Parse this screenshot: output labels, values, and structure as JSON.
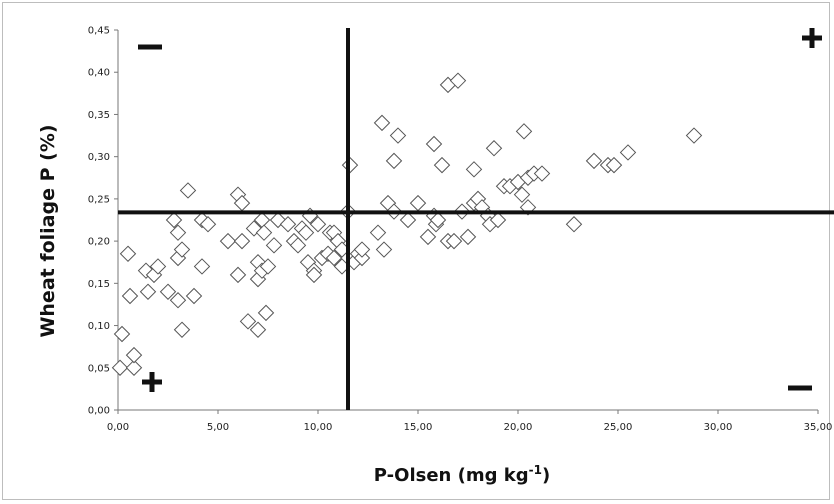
{
  "chart_data": {
    "type": "scatter",
    "title": "",
    "xlabel_main": "P-Olsen (mg kg",
    "xlabel_sup": "-1",
    "xlabel_end": ")",
    "ylabel": "Wheat foliage P (%)",
    "xlim": [
      0,
      35
    ],
    "ylim": [
      0,
      0.45
    ],
    "x_ticks": [
      "0,00",
      "5,00",
      "10,00",
      "15,00",
      "20,00",
      "25,00",
      "30,00",
      "35,00"
    ],
    "y_ticks": [
      "0,00",
      "0,05",
      "0,10",
      "0,15",
      "0,20",
      "0,25",
      "0,30",
      "0,35",
      "0,40",
      "0,45"
    ],
    "grid": false,
    "marker": "open-diamond",
    "reference_lines": {
      "vertical_x": 11.5,
      "horizontal_y": 0.234
    },
    "quadrant_signs": [
      {
        "position": "top-left",
        "sign": "−"
      },
      {
        "position": "top-right",
        "sign": "+"
      },
      {
        "position": "bottom-left",
        "sign": "+"
      },
      {
        "position": "bottom-right",
        "sign": "−"
      }
    ],
    "points": [
      [
        0.1,
        0.05
      ],
      [
        0.2,
        0.09
      ],
      [
        0.5,
        0.185
      ],
      [
        0.8,
        0.05
      ],
      [
        0.8,
        0.065
      ],
      [
        0.6,
        0.135
      ],
      [
        1.5,
        0.14
      ],
      [
        1.4,
        0.165
      ],
      [
        1.8,
        0.16
      ],
      [
        2.0,
        0.17
      ],
      [
        2.5,
        0.14
      ],
      [
        2.8,
        0.225
      ],
      [
        3.0,
        0.18
      ],
      [
        3.0,
        0.21
      ],
      [
        3.2,
        0.19
      ],
      [
        3.0,
        0.13
      ],
      [
        3.2,
        0.095
      ],
      [
        3.5,
        0.26
      ],
      [
        3.8,
        0.135
      ],
      [
        4.2,
        0.225
      ],
      [
        4.2,
        0.17
      ],
      [
        4.5,
        0.22
      ],
      [
        5.5,
        0.2
      ],
      [
        6.0,
        0.255
      ],
      [
        6.0,
        0.16
      ],
      [
        6.2,
        0.2
      ],
      [
        6.2,
        0.245
      ],
      [
        6.5,
        0.105
      ],
      [
        6.8,
        0.215
      ],
      [
        7.0,
        0.095
      ],
      [
        7.0,
        0.175
      ],
      [
        7.0,
        0.155
      ],
      [
        7.2,
        0.225
      ],
      [
        7.2,
        0.165
      ],
      [
        7.3,
        0.21
      ],
      [
        7.4,
        0.115
      ],
      [
        7.5,
        0.17
      ],
      [
        7.8,
        0.195
      ],
      [
        8.0,
        0.225
      ],
      [
        8.5,
        0.22
      ],
      [
        8.8,
        0.2
      ],
      [
        9.0,
        0.195
      ],
      [
        9.2,
        0.215
      ],
      [
        9.4,
        0.21
      ],
      [
        9.5,
        0.175
      ],
      [
        9.6,
        0.23
      ],
      [
        9.8,
        0.165
      ],
      [
        9.8,
        0.16
      ],
      [
        10.0,
        0.22
      ],
      [
        10.2,
        0.18
      ],
      [
        10.5,
        0.185
      ],
      [
        10.6,
        0.21
      ],
      [
        10.8,
        0.21
      ],
      [
        10.8,
        0.18
      ],
      [
        11.0,
        0.2
      ],
      [
        11.2,
        0.19
      ],
      [
        11.2,
        0.17
      ],
      [
        11.5,
        0.235
      ],
      [
        11.6,
        0.29
      ],
      [
        11.8,
        0.175
      ],
      [
        12.0,
        0.185
      ],
      [
        12.2,
        0.18
      ],
      [
        12.2,
        0.19
      ],
      [
        13.0,
        0.21
      ],
      [
        13.2,
        0.34
      ],
      [
        13.3,
        0.19
      ],
      [
        13.5,
        0.245
      ],
      [
        13.8,
        0.235
      ],
      [
        13.8,
        0.295
      ],
      [
        14.0,
        0.325
      ],
      [
        14.5,
        0.225
      ],
      [
        15.0,
        0.245
      ],
      [
        15.5,
        0.205
      ],
      [
        15.8,
        0.23
      ],
      [
        15.8,
        0.315
      ],
      [
        15.9,
        0.22
      ],
      [
        16.0,
        0.225
      ],
      [
        16.2,
        0.29
      ],
      [
        16.5,
        0.2
      ],
      [
        16.5,
        0.385
      ],
      [
        16.8,
        0.2
      ],
      [
        17.0,
        0.39
      ],
      [
        17.2,
        0.235
      ],
      [
        17.5,
        0.205
      ],
      [
        17.8,
        0.245
      ],
      [
        17.8,
        0.285
      ],
      [
        18.0,
        0.25
      ],
      [
        18.2,
        0.24
      ],
      [
        18.5,
        0.23
      ],
      [
        18.6,
        0.22
      ],
      [
        18.8,
        0.31
      ],
      [
        19.0,
        0.225
      ],
      [
        19.3,
        0.265
      ],
      [
        19.6,
        0.265
      ],
      [
        20.0,
        0.27
      ],
      [
        20.2,
        0.255
      ],
      [
        20.3,
        0.33
      ],
      [
        20.5,
        0.24
      ],
      [
        20.5,
        0.275
      ],
      [
        20.8,
        0.28
      ],
      [
        21.2,
        0.28
      ],
      [
        22.8,
        0.22
      ],
      [
        23.8,
        0.295
      ],
      [
        24.5,
        0.29
      ],
      [
        24.8,
        0.29
      ],
      [
        25.5,
        0.305
      ],
      [
        28.8,
        0.325
      ]
    ]
  }
}
